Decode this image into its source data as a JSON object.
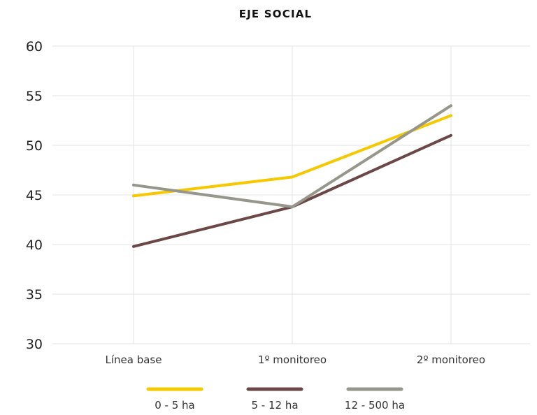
{
  "chart_data": {
    "type": "line",
    "title": "EJE SOCIAL",
    "xlabel": "",
    "ylabel": "",
    "categories": [
      "Línea base",
      "1º monitoreo",
      "2º monitoreo"
    ],
    "ylim": [
      30,
      60
    ],
    "yticks": [
      "30",
      "35",
      "40",
      "45",
      "50",
      "55",
      "60"
    ],
    "grid": true,
    "legend": "bottom",
    "series": [
      {
        "name": "0 - 5 ha",
        "values": [
          44.9,
          46.8,
          53.0
        ],
        "color": "#F5C800"
      },
      {
        "name": "5 - 12 ha",
        "values": [
          39.8,
          43.8,
          51.0
        ],
        "color": "#6B4747"
      },
      {
        "name": "12 - 500 ha",
        "values": [
          46.0,
          43.8,
          54.0
        ],
        "color": "#96968A"
      }
    ]
  }
}
